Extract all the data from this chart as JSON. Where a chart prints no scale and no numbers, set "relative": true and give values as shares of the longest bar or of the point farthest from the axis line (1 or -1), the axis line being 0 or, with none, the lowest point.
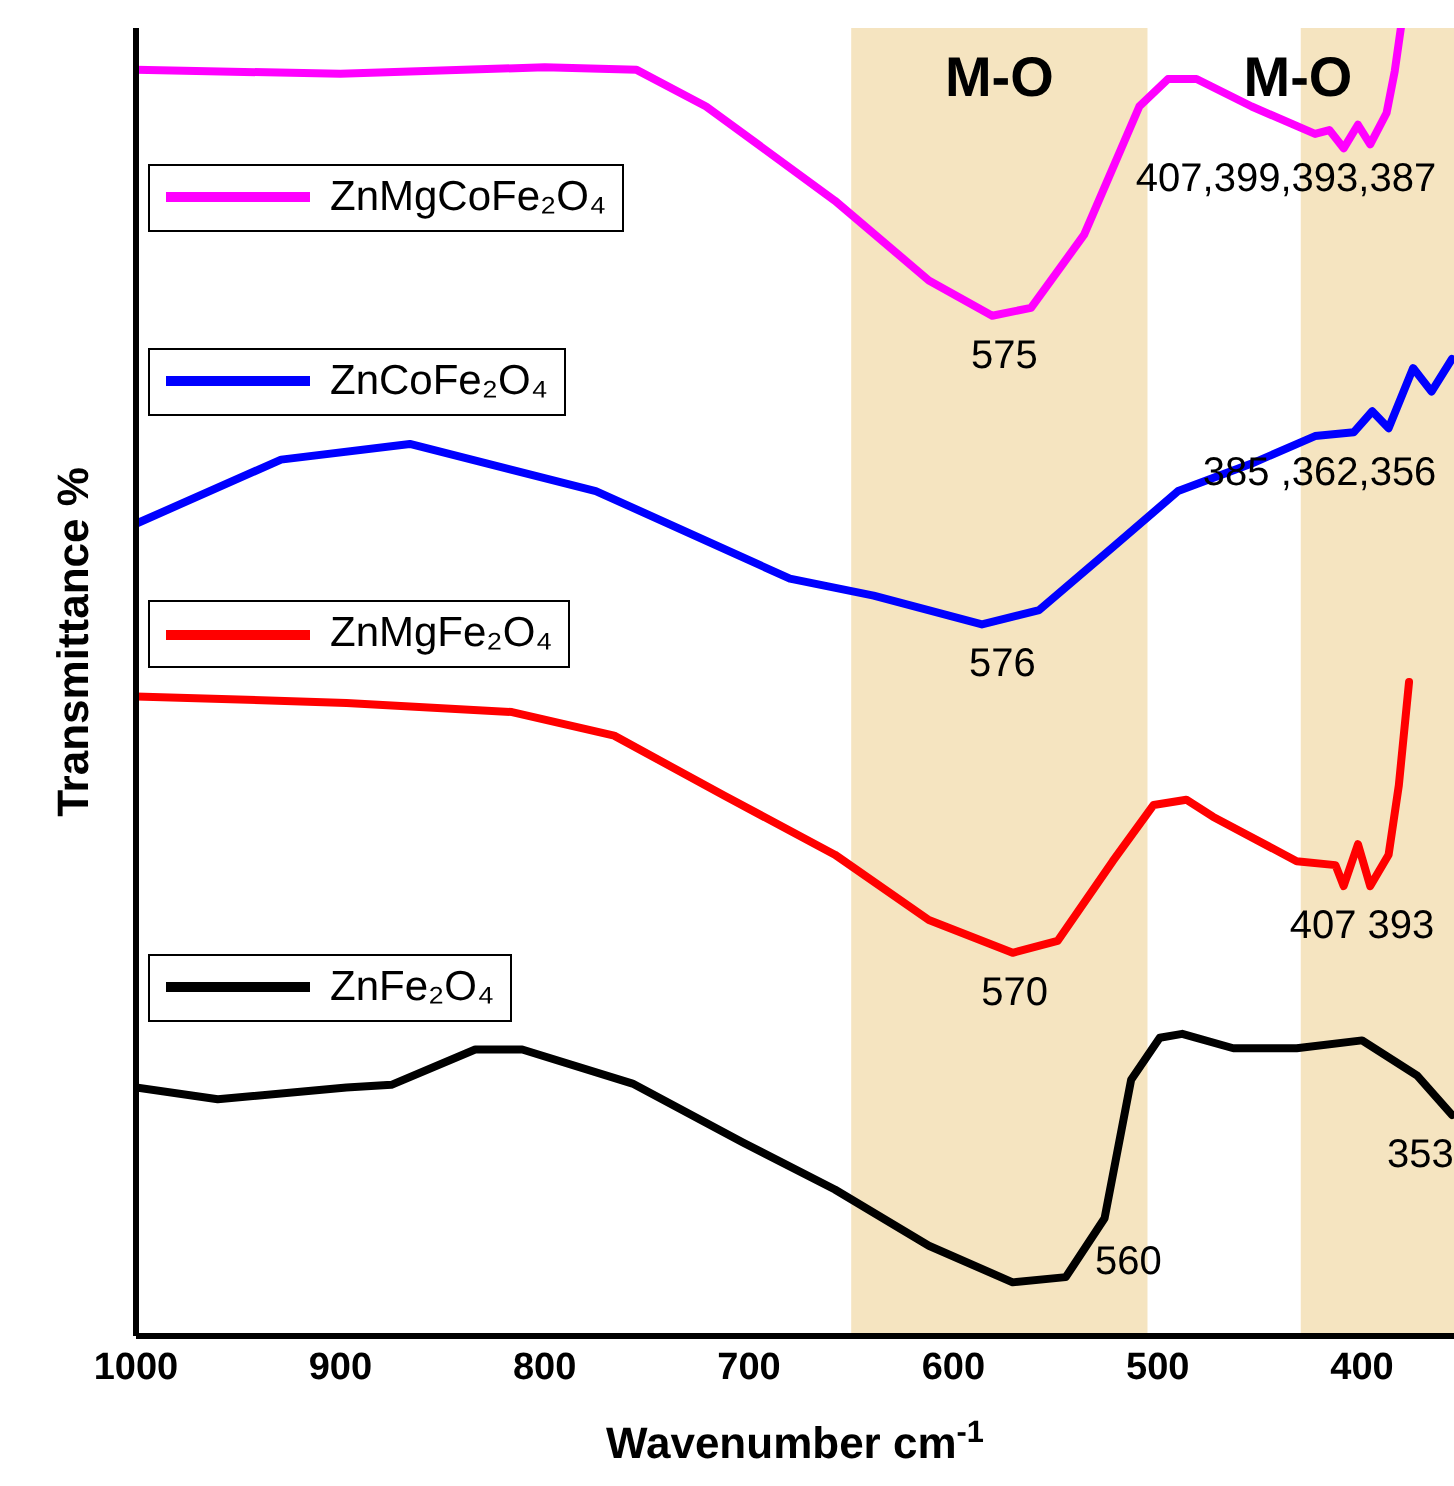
{
  "chart_data": {
    "type": "line",
    "relative": true,
    "xlabel": "Wavenumber cm$^{-1}$",
    "ylabel": "Transmittance %",
    "xlim": [
      1000,
      355
    ],
    "xticks": [
      1000,
      900,
      800,
      700,
      600,
      500,
      400
    ],
    "grid": false,
    "legend": "left",
    "marker": "none",
    "line_style": "solid",
    "bands": [
      {
        "axis": "x",
        "from": 650,
        "to": 505,
        "label": "M-O",
        "color": "#f5e4c0"
      },
      {
        "axis": "x",
        "from": 430,
        "to": 355,
        "label": "M-O",
        "color": "#f5e4c0"
      }
    ],
    "series": [
      {
        "name": "ZnMgCoFe₂O₄",
        "color": "#ff00ff",
        "x": [
          1000,
          900,
          800,
          755,
          721,
          658,
          612,
          581,
          562,
          536,
          509,
          495,
          481,
          454,
          423,
          416,
          409,
          402,
          396,
          388,
          384,
          381
        ],
        "values": [
          0.968,
          0.965,
          0.97,
          0.968,
          0.94,
          0.868,
          0.807,
          0.78,
          0.786,
          0.842,
          0.94,
          0.961,
          0.961,
          0.94,
          0.919,
          0.922,
          0.908,
          0.926,
          0.911,
          0.935,
          0.967,
          1.0
        ]
      },
      {
        "name": "ZnCoFe₂O₄",
        "color": "#0000ff",
        "x": [
          1000,
          929,
          866,
          775,
          680,
          639,
          586,
          558,
          522,
          490,
          454,
          423,
          404,
          395,
          387,
          375,
          366,
          356
        ],
        "values": [
          0.621,
          0.67,
          0.682,
          0.646,
          0.579,
          0.566,
          0.544,
          0.555,
          0.603,
          0.646,
          0.667,
          0.688,
          0.691,
          0.707,
          0.694,
          0.74,
          0.722,
          0.747
        ]
      },
      {
        "name": "ZnMgFe₂O₄",
        "color": "#ff0000",
        "x": [
          1000,
          897,
          816,
          766,
          712,
          658,
          612,
          571,
          549,
          522,
          502,
          486,
          473,
          432,
          413,
          409,
          402,
          396,
          387,
          382,
          377
        ],
        "values": [
          0.489,
          0.484,
          0.477,
          0.459,
          0.413,
          0.368,
          0.318,
          0.293,
          0.302,
          0.363,
          0.406,
          0.41,
          0.397,
          0.363,
          0.36,
          0.344,
          0.376,
          0.344,
          0.368,
          0.421,
          0.5
        ]
      },
      {
        "name": "ZnFe₂O₄",
        "color": "#000000",
        "x": [
          1000,
          960,
          897,
          875,
          834,
          811,
          757,
          703,
          658,
          612,
          571,
          545,
          526,
          513,
          499,
          488,
          463,
          432,
          400,
          373,
          356
        ],
        "values": [
          0.19,
          0.181,
          0.19,
          0.192,
          0.219,
          0.219,
          0.193,
          0.148,
          0.112,
          0.069,
          0.041,
          0.045,
          0.09,
          0.196,
          0.228,
          0.231,
          0.22,
          0.22,
          0.226,
          0.199,
          0.169
        ]
      }
    ],
    "annotations": [
      {
        "text": "575",
        "x": 575,
        "y": 0.78
      },
      {
        "text": "407,399,393,387",
        "x": 400,
        "y": 0.915
      },
      {
        "text": "576",
        "x": 576,
        "y": 0.544
      },
      {
        "text": "385 ,362,356",
        "x": 385,
        "y": 0.69
      },
      {
        "text": "570",
        "x": 570,
        "y": 0.293
      },
      {
        "text": "407 393",
        "x": 400,
        "y": 0.344
      },
      {
        "text": "560",
        "x": 560,
        "y": 0.041
      },
      {
        "text": "353",
        "x": 356,
        "y": 0.169
      }
    ]
  }
}
